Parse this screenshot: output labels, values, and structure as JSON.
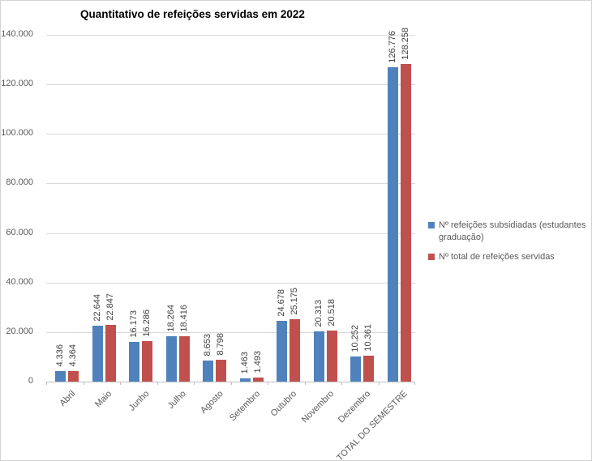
{
  "chart_data": {
    "type": "bar",
    "title": "Quantitativo de refeições servidas em 2022",
    "xlabel": "",
    "ylabel": "",
    "categories": [
      "Abril",
      "Maio",
      "Junho",
      "Julho",
      "Agosto",
      "Setembro",
      "Outubro",
      "Novembro",
      "Dezembro",
      "TOTAL DO SEMESTRE"
    ],
    "series": [
      {
        "name": "Nº refeições subsidiadas (estudantes graduação)",
        "color": "#4F81BD",
        "values": [
          4336,
          22644,
          16173,
          18264,
          8653,
          1463,
          24678,
          20313,
          10252,
          126776
        ],
        "labels": [
          "4.336",
          "22.644",
          "16.173",
          "18.264",
          "8.653",
          "1.463",
          "24.678",
          "20.313",
          "10.252",
          "126.776"
        ]
      },
      {
        "name": "Nº total de refeições servidas",
        "color": "#C0504D",
        "values": [
          4364,
          22847,
          16286,
          18416,
          8798,
          1493,
          25175,
          20518,
          10361,
          128258
        ],
        "labels": [
          "4.364",
          "22.847",
          "16.286",
          "18.416",
          "8.798",
          "1.493",
          "25.175",
          "20.518",
          "10.361",
          "128.258"
        ]
      }
    ],
    "ylim": [
      0,
      140000
    ],
    "yticks": [
      {
        "value": 0,
        "label": "0"
      },
      {
        "value": 20000,
        "label": "20.000"
      },
      {
        "value": 40000,
        "label": "40.000"
      },
      {
        "value": 60000,
        "label": "60.000"
      },
      {
        "value": 80000,
        "label": "80.000"
      },
      {
        "value": 100000,
        "label": "100.000"
      },
      {
        "value": 120000,
        "label": "120.000"
      },
      {
        "value": 140000,
        "label": "140.000"
      }
    ],
    "grid": "horizontal",
    "legend_position": "right"
  }
}
